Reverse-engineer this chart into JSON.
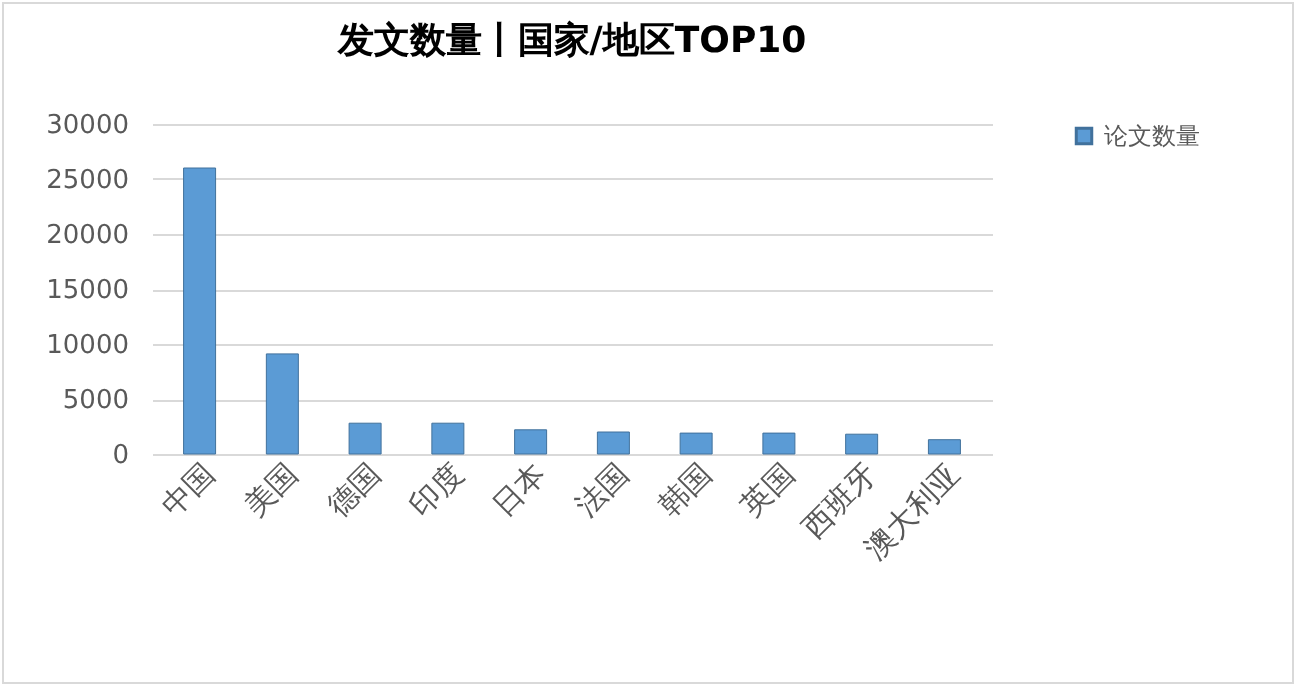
{
  "chart_data": {
    "type": "bar",
    "title": "发文数量丨国家/地区TOP10",
    "categories": [
      "中国",
      "美国",
      "德国",
      "印度",
      "日本",
      "法国",
      "韩国",
      "英国",
      "西班牙",
      "澳大利亚"
    ],
    "series": [
      {
        "name": "论文数量",
        "color": "#5b9bd5",
        "values": [
          26000,
          9100,
          2800,
          2800,
          2200,
          2000,
          1900,
          1900,
          1800,
          1300
        ]
      }
    ],
    "ylim": [
      0,
      30000
    ],
    "yticks": [
      0,
      5000,
      10000,
      15000,
      20000,
      25000,
      30000
    ],
    "grid": "y",
    "legend": "right"
  }
}
